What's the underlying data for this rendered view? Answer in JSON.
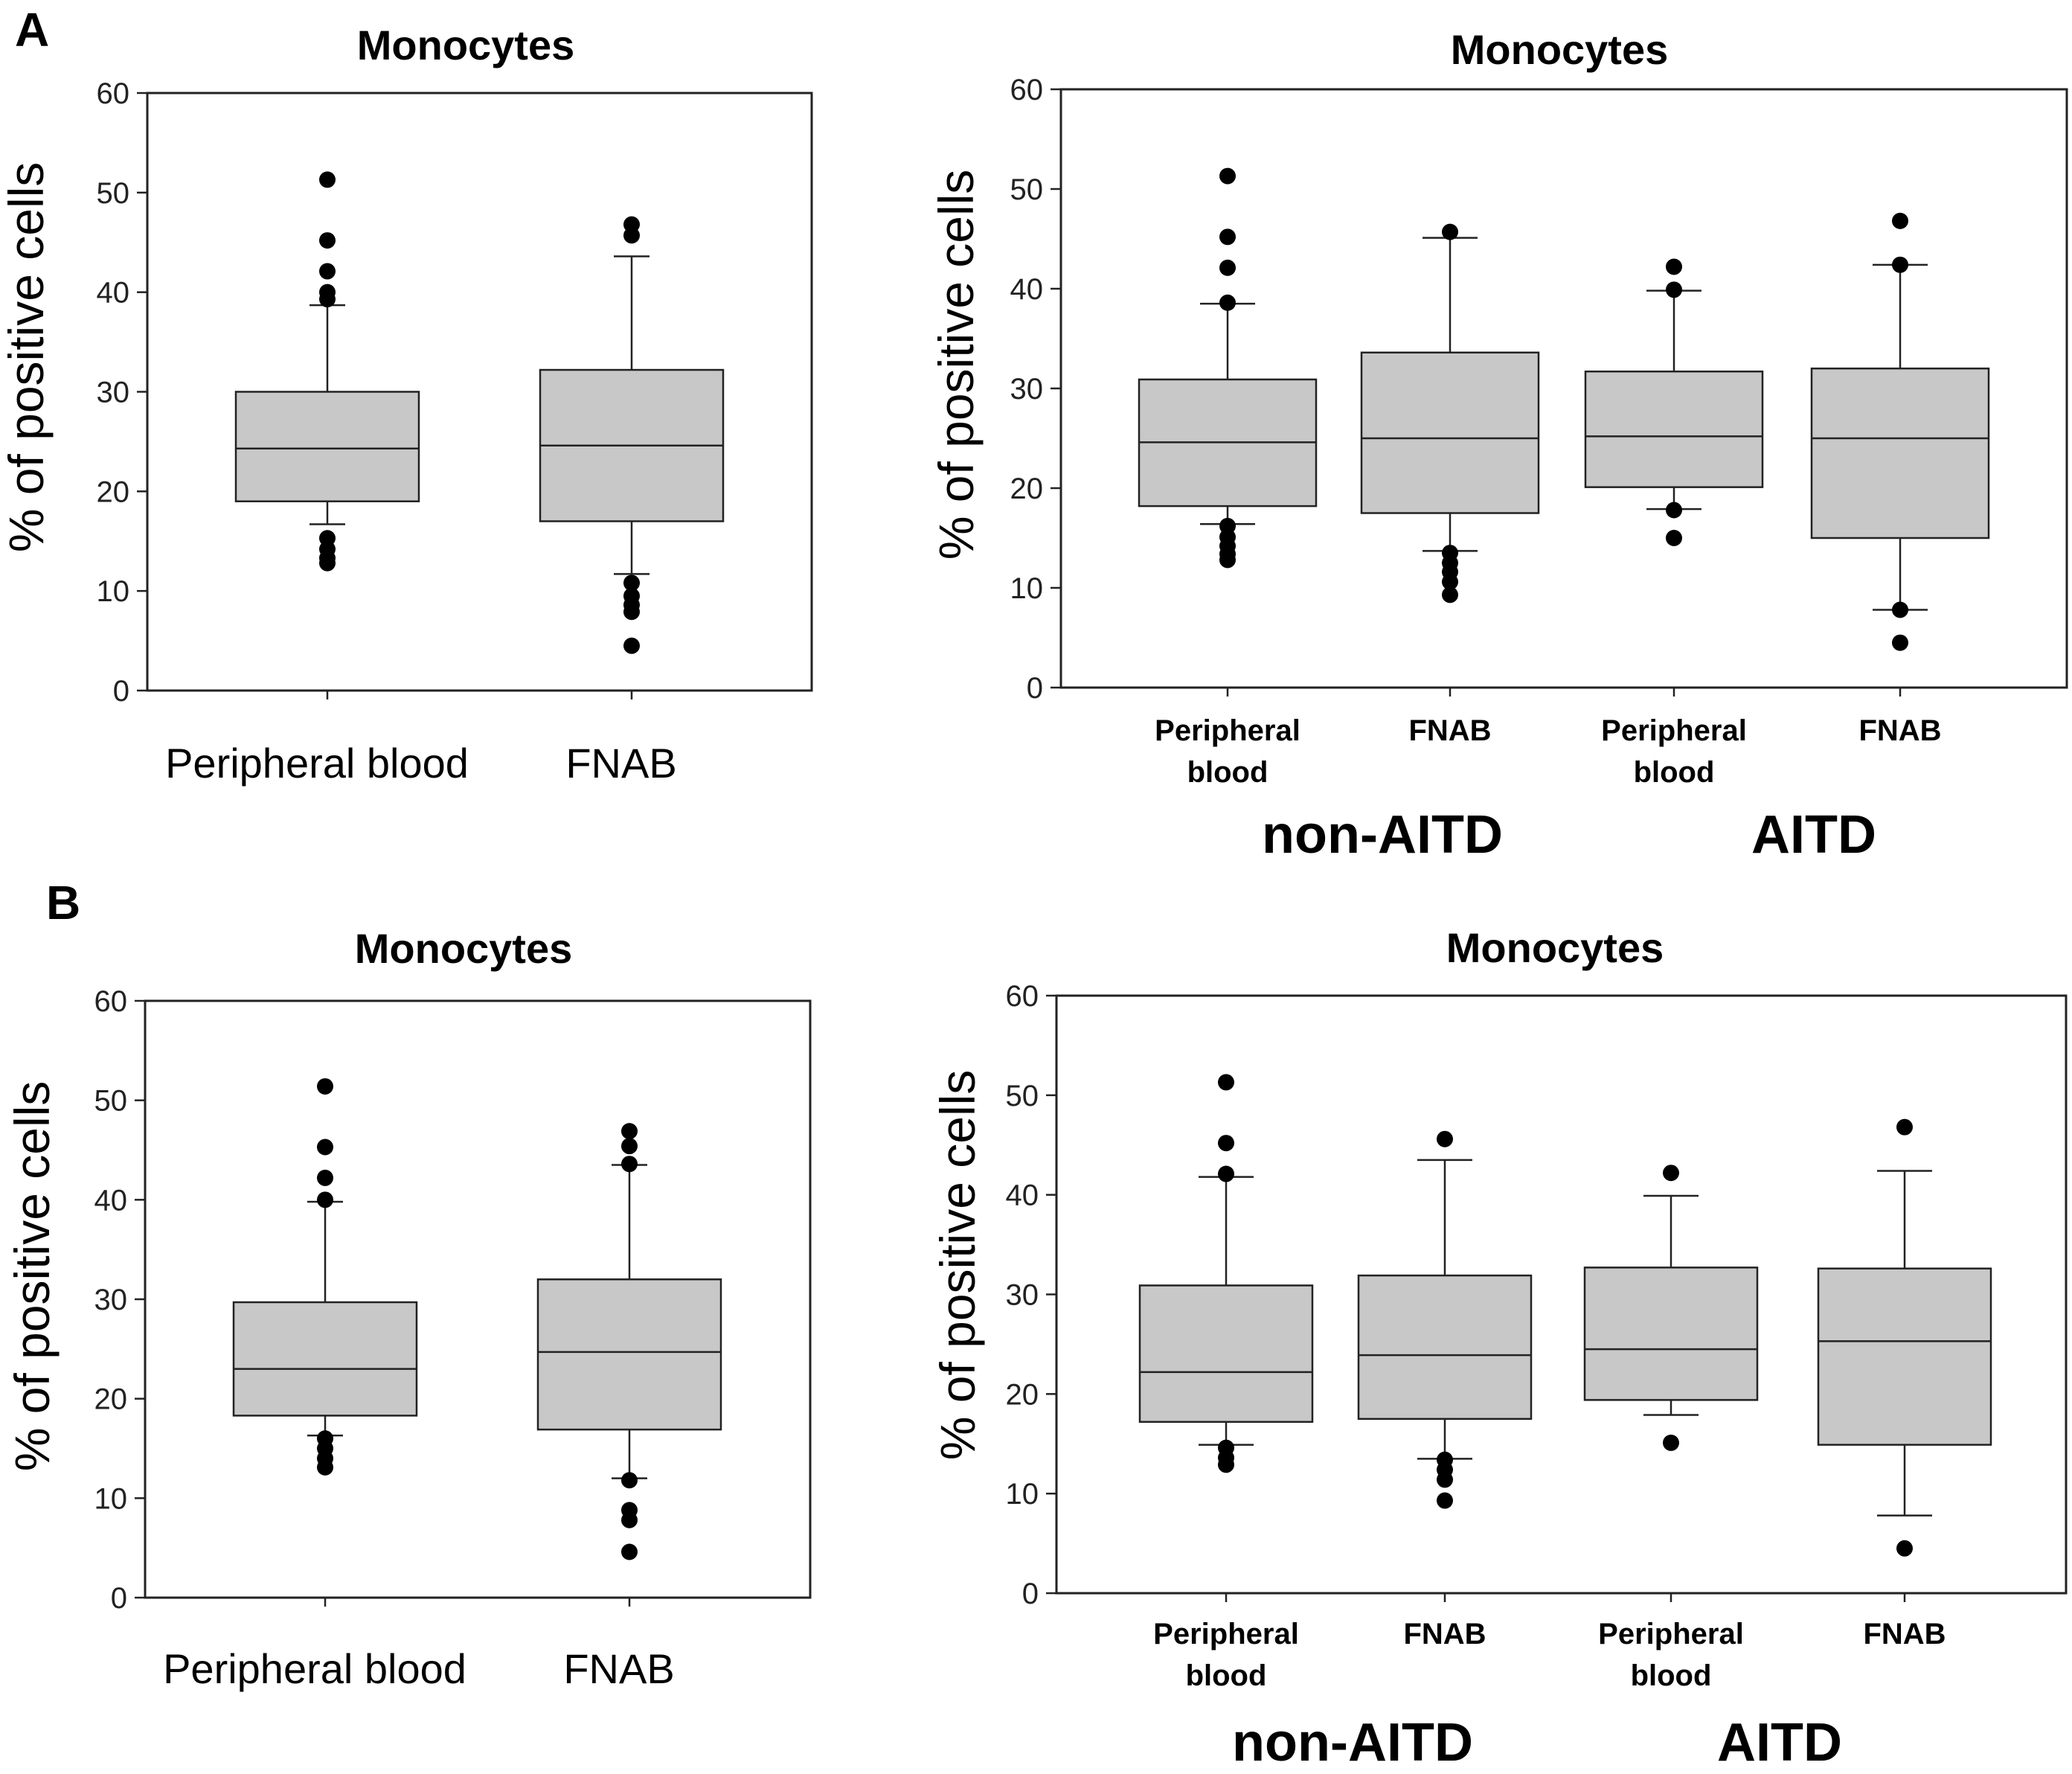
{
  "chart_data": [
    {
      "panel": "A",
      "type": "boxplot",
      "title": "Monocytes",
      "ylabel": "% of positive cells",
      "xlabel": "",
      "ylim": [
        0,
        60
      ],
      "yticks": [
        0,
        10,
        20,
        30,
        40,
        50,
        60
      ],
      "categories": [
        {
          "label_lines": [
            "Peripheral blood"
          ],
          "q1": 19,
          "median": 24.3,
          "q3": 30,
          "whisker_low": 16.7,
          "whisker_high": 38.7,
          "outliers": [
            51.3,
            45.2,
            42.1,
            40,
            39.3,
            15.3,
            14.2,
            13.3,
            12.8
          ]
        },
        {
          "label_lines": [
            "FNAB"
          ],
          "q1": 17,
          "median": 24.6,
          "q3": 32.2,
          "whisker_low": 11.7,
          "whisker_high": 43.6,
          "outliers": [
            46.8,
            45.7,
            10.8,
            9.5,
            8.6,
            7.9,
            4.5
          ]
        }
      ],
      "groups": []
    },
    {
      "panel": "",
      "type": "boxplot",
      "title": "Monocytes",
      "ylabel": "% of positive cells",
      "xlabel": "",
      "ylim": [
        0,
        60
      ],
      "yticks": [
        0,
        10,
        20,
        30,
        40,
        50,
        60
      ],
      "categories": [
        {
          "label_lines": [
            "Peripheral",
            "blood"
          ],
          "q1": 18.2,
          "median": 24.6,
          "q3": 30.9,
          "whisker_low": 16.4,
          "whisker_high": 38.5,
          "outliers": [
            51.3,
            45.2,
            42.1,
            38.6,
            16.2,
            15.1,
            14.2,
            13.4,
            12.8
          ]
        },
        {
          "label_lines": [
            "FNAB"
          ],
          "q1": 17.5,
          "median": 25,
          "q3": 33.6,
          "whisker_low": 13.7,
          "whisker_high": 45.1,
          "outliers": [
            45.7,
            13.5,
            12.5,
            11.6,
            10.6,
            9.3
          ]
        },
        {
          "label_lines": [
            "Peripheral",
            "blood"
          ],
          "q1": 20.1,
          "median": 25.2,
          "q3": 31.7,
          "whisker_low": 17.9,
          "whisker_high": 39.8,
          "outliers": [
            42.2,
            39.9,
            17.8,
            15
          ]
        },
        {
          "label_lines": [
            "FNAB"
          ],
          "q1": 15,
          "median": 25,
          "q3": 32,
          "whisker_low": 7.8,
          "whisker_high": 42.4,
          "outliers": [
            46.8,
            42.4,
            7.8,
            4.5
          ]
        }
      ],
      "groups": [
        {
          "label": "non-AITD",
          "span": [
            0,
            1
          ]
        },
        {
          "label": "AITD",
          "span": [
            2,
            3
          ]
        }
      ]
    },
    {
      "panel": "B",
      "type": "boxplot",
      "title": "Monocytes",
      "ylabel": "% of positive cells",
      "xlabel": "",
      "ylim": [
        0,
        60
      ],
      "yticks": [
        0,
        10,
        20,
        30,
        40,
        50,
        60
      ],
      "categories": [
        {
          "label_lines": [
            "Peripheral blood"
          ],
          "q1": 18.3,
          "median": 23,
          "q3": 29.7,
          "whisker_low": 16.3,
          "whisker_high": 39.8,
          "outliers": [
            51.4,
            45.3,
            42.2,
            40,
            16,
            15,
            14,
            13.1
          ]
        },
        {
          "label_lines": [
            "FNAB"
          ],
          "q1": 16.9,
          "median": 24.7,
          "q3": 32,
          "whisker_low": 12,
          "whisker_high": 43.5,
          "outliers": [
            46.9,
            45.4,
            43.6,
            11.8,
            8.8,
            7.8,
            4.6
          ]
        }
      ],
      "groups": []
    },
    {
      "panel": "",
      "type": "boxplot",
      "title": "Monocytes",
      "ylabel": "% of positive cells",
      "xlabel": "",
      "ylim": [
        0,
        60
      ],
      "yticks": [
        0,
        10,
        20,
        30,
        40,
        50,
        60
      ],
      "categories": [
        {
          "label_lines": [
            "Peripheral",
            "blood"
          ],
          "q1": 17.2,
          "median": 22.2,
          "q3": 30.9,
          "whisker_low": 14.9,
          "whisker_high": 41.8,
          "outliers": [
            51.3,
            45.2,
            42.1,
            14.6,
            13.6,
            12.9
          ]
        },
        {
          "label_lines": [
            "FNAB"
          ],
          "q1": 17.5,
          "median": 23.9,
          "q3": 31.9,
          "whisker_low": 13.5,
          "whisker_high": 43.5,
          "outliers": [
            45.6,
            13.4,
            12.4,
            11.4,
            9.3
          ]
        },
        {
          "label_lines": [
            "Peripheral",
            "blood"
          ],
          "q1": 19.4,
          "median": 24.5,
          "q3": 32.7,
          "whisker_low": 17.9,
          "whisker_high": 39.9,
          "outliers": [
            42.2,
            15.1
          ]
        },
        {
          "label_lines": [
            "FNAB"
          ],
          "q1": 14.9,
          "median": 25.3,
          "q3": 32.6,
          "whisker_low": 7.8,
          "whisker_high": 42.4,
          "outliers": [
            46.8,
            4.5
          ]
        }
      ],
      "groups": [
        {
          "label": "non-AITD",
          "span": [
            0,
            1
          ]
        },
        {
          "label": "AITD",
          "span": [
            2,
            3
          ]
        }
      ]
    }
  ]
}
